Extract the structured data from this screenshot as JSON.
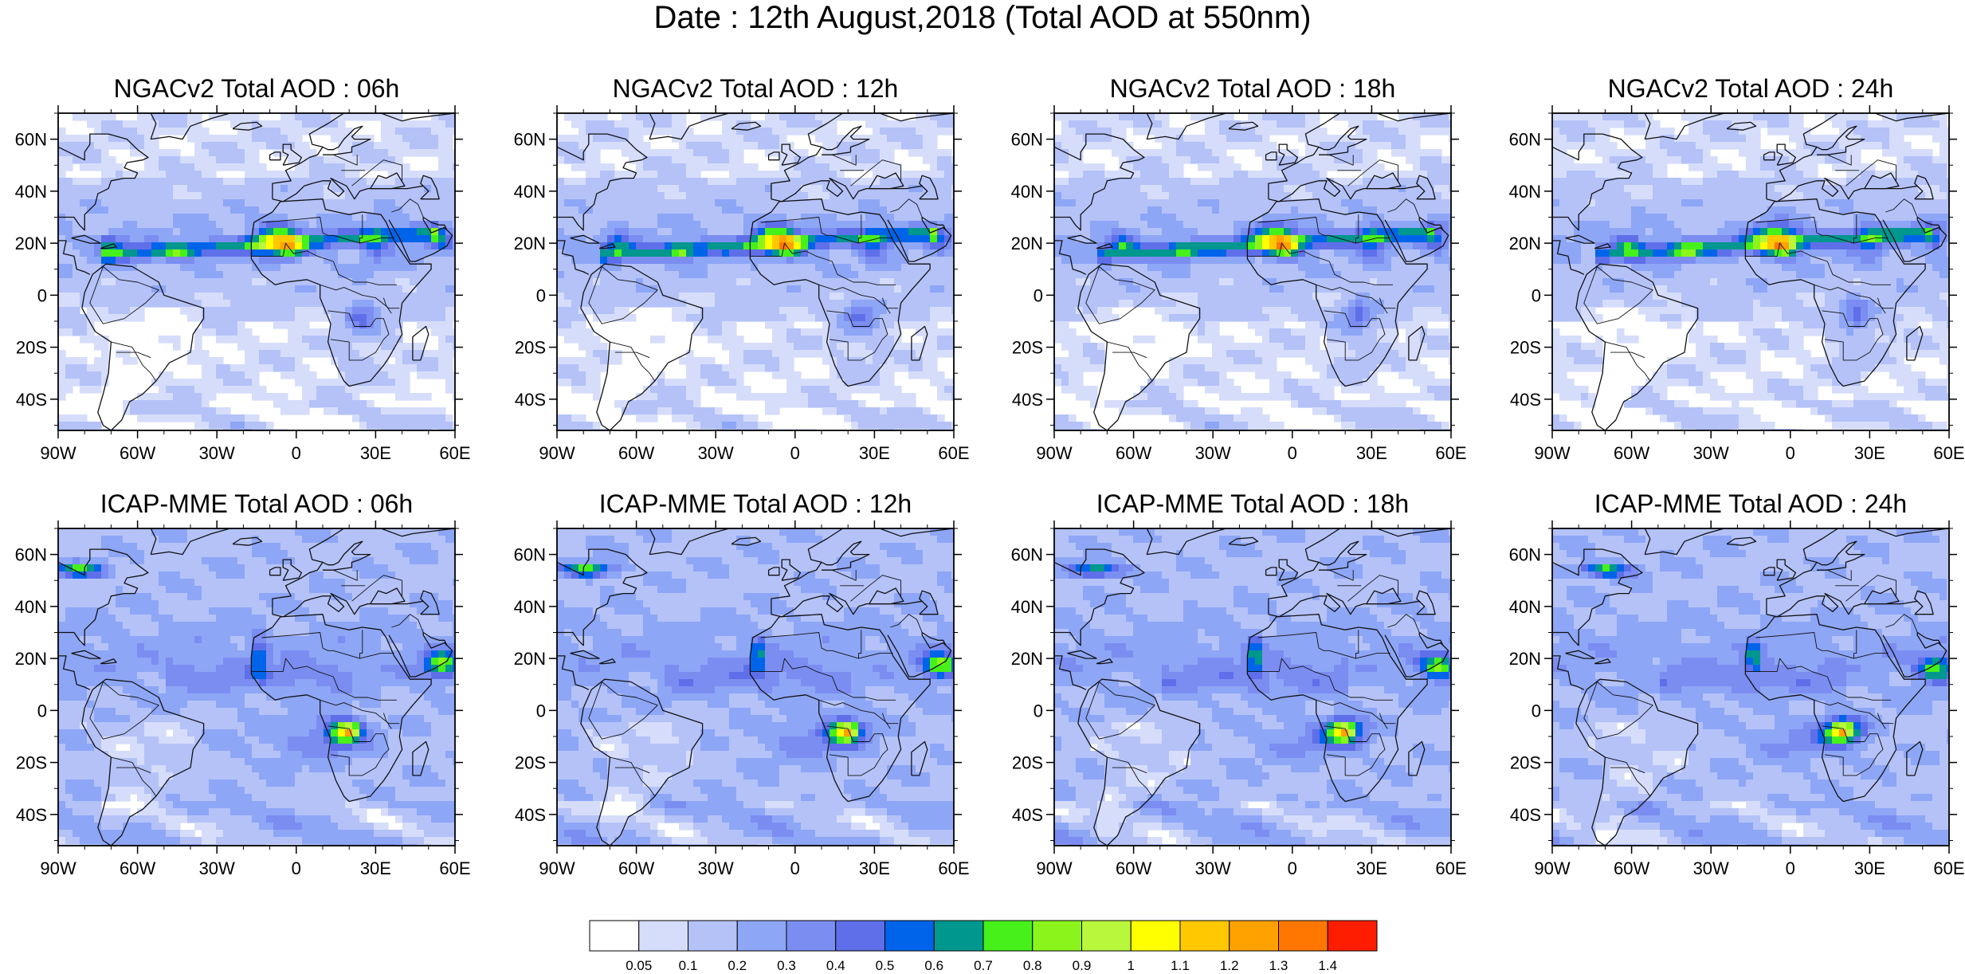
{
  "title": "Date : 12th August,2018 (Total AOD at 550nm)",
  "panels": [
    {
      "title": "NGACv2 Total AOD : 06h",
      "model": "NGACv2",
      "lead": "06h"
    },
    {
      "title": "NGACv2 Total AOD : 12h",
      "model": "NGACv2",
      "lead": "12h"
    },
    {
      "title": "NGACv2 Total AOD : 18h",
      "model": "NGACv2",
      "lead": "18h"
    },
    {
      "title": "NGACv2 Total AOD : 24h",
      "model": "NGACv2",
      "lead": "24h"
    },
    {
      "title": "ICAP-MME Total AOD : 06h",
      "model": "ICAP-MME",
      "lead": "06h"
    },
    {
      "title": "ICAP-MME Total AOD : 12h",
      "model": "ICAP-MME",
      "lead": "12h"
    },
    {
      "title": "ICAP-MME Total AOD : 18h",
      "model": "ICAP-MME",
      "lead": "18h"
    },
    {
      "title": "ICAP-MME Total AOD : 24h",
      "model": "ICAP-MME",
      "lead": "24h"
    }
  ],
  "map": {
    "lon_range": [
      -90,
      60
    ],
    "lat_range": [
      -52,
      70
    ],
    "lat_ticks": [
      {
        "value": 60,
        "label": "60N"
      },
      {
        "value": 40,
        "label": "40N"
      },
      {
        "value": 20,
        "label": "20N"
      },
      {
        "value": 0,
        "label": "0"
      },
      {
        "value": -20,
        "label": "20S"
      },
      {
        "value": -40,
        "label": "40S"
      }
    ],
    "lon_ticks": [
      {
        "value": -90,
        "label": "90W"
      },
      {
        "value": -60,
        "label": "60W"
      },
      {
        "value": -30,
        "label": "30W"
      },
      {
        "value": 0,
        "label": "0"
      },
      {
        "value": 30,
        "label": "30E"
      },
      {
        "value": 60,
        "label": "60E"
      }
    ]
  },
  "colorbar": {
    "colors": [
      "#ffffff",
      "#d6ddfb",
      "#b4c2f8",
      "#8ea6f6",
      "#7b8df1",
      "#5f6fe9",
      "#0064ea",
      "#00978f",
      "#46f01b",
      "#8bf51b",
      "#b9f73c",
      "#ffff00",
      "#ffc800",
      "#ffa200",
      "#ff7700",
      "#ff1d00"
    ],
    "labels": [
      "0.05",
      "0.1",
      "0.2",
      "0.3",
      "0.4",
      "0.5",
      "0.6",
      "0.7",
      "0.8",
      "0.9",
      "1",
      "1.1",
      "1.2",
      "1.3",
      "1.4"
    ]
  }
}
